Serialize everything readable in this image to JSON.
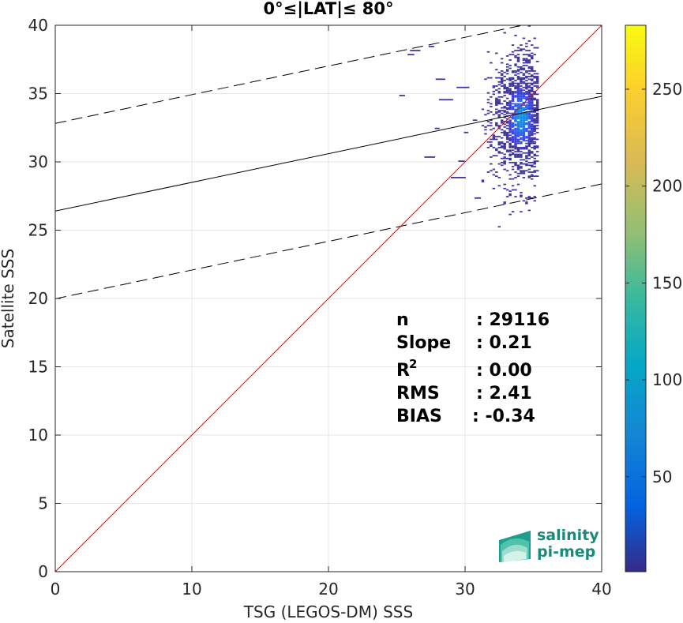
{
  "chart_data": {
    "type": "heatmap",
    "title": "0°≤|LAT|≤ 80°",
    "xlabel": "TSG (LEGOS-DM) SSS",
    "ylabel": "Satellite SSS",
    "xlim": [
      0,
      40
    ],
    "ylim": [
      0,
      40
    ],
    "xticks": [
      "0",
      "10",
      "20",
      "30",
      "40"
    ],
    "yticks": [
      "0",
      "5",
      "10",
      "15",
      "20",
      "25",
      "30",
      "35",
      "40"
    ],
    "grid": true,
    "colorbar": {
      "min": 1,
      "max": 283,
      "ticks": [
        "50",
        "100",
        "150",
        "200",
        "250"
      ],
      "colormap": "parula"
    },
    "lines": {
      "identity": {
        "slope": 1.0,
        "intercept": 0.0,
        "color": "#ff0000"
      },
      "regression": {
        "slope": 0.21,
        "intercept": 26.4,
        "color": "#000000",
        "style": "solid"
      },
      "bound_upper": {
        "slope": 0.21,
        "intercept": 32.82,
        "color": "#000000",
        "style": "dashed"
      },
      "bound_lower": {
        "slope": 0.21,
        "intercept": 19.98,
        "color": "#000000",
        "style": "dashed"
      }
    },
    "density_center": {
      "x": 34.0,
      "y": 33.2
    },
    "stats": [
      {
        "label": "n",
        "value": ": 29116"
      },
      {
        "label": "Slope",
        "value": ": 0.21"
      },
      {
        "label": "R",
        "sup": "2",
        "value": ": 0.00"
      },
      {
        "label": "RMS",
        "value": ": 2.41"
      },
      {
        "label": "BIAS",
        "value": ": -0.34"
      }
    ]
  },
  "logo": {
    "line1": "salinity",
    "line2": "pi-mep"
  }
}
